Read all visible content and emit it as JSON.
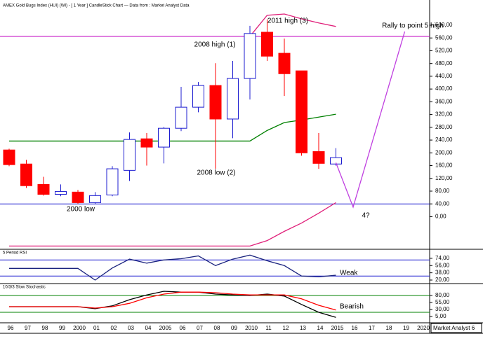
{
  "chart_data": [
    {
      "type": "candlestick",
      "title": "AMEX Gold Bugs Index (HUI) (WI) -  [ 1 Year ] CandleStick Chart — Data from : Market Analyst Data",
      "categories": [
        "96",
        "97",
        "98",
        "99",
        "2000",
        "01",
        "02",
        "03",
        "04",
        "2005",
        "06",
        "07",
        "08",
        "09",
        "2010",
        "11",
        "12",
        "13",
        "14",
        "2015",
        "16",
        "17",
        "18",
        "19",
        "2020"
      ],
      "open": [
        209,
        165,
        101,
        70,
        77,
        44,
        68,
        145,
        244,
        218,
        277,
        343,
        411,
        306,
        433,
        578,
        512,
        457,
        204,
        165,
        null,
        null,
        null,
        null,
        null
      ],
      "high": [
        213,
        178,
        125,
        101,
        84,
        77,
        158,
        264,
        262,
        281,
        407,
        422,
        481,
        488,
        598,
        618,
        558,
        457,
        262,
        215,
        null,
        null,
        null,
        null,
        null
      ],
      "low": [
        158,
        90,
        66,
        64,
        40,
        40,
        64,
        112,
        160,
        167,
        268,
        327,
        150,
        246,
        367,
        488,
        378,
        191,
        150,
        160,
        null,
        null,
        null,
        null,
        null
      ],
      "close": [
        163,
        97,
        70,
        79,
        44,
        66,
        150,
        242,
        218,
        277,
        343,
        411,
        306,
        433,
        574,
        503,
        448,
        200,
        167,
        185,
        null,
        null,
        null,
        null,
        null
      ],
      "up_color": "#1c1cd0",
      "down_color": "#ff0000",
      "overlays": [
        {
          "color": "#008000",
          "values": [
            237,
            237,
            237,
            237,
            237,
            237,
            237,
            237,
            237,
            237,
            237,
            237,
            237,
            237,
            237,
            270,
            295,
            303,
            312,
            321,
            null,
            null,
            null,
            null,
            null
          ]
        },
        {
          "color": "#e0207a",
          "values": [
            null,
            null,
            null,
            null,
            null,
            null,
            null,
            null,
            null,
            null,
            null,
            null,
            null,
            null,
            565,
            631,
            635,
            620,
            607,
            596,
            null,
            null,
            null,
            null,
            null
          ]
        },
        {
          "color": "#e0207a",
          "values": [
            -92,
            -92,
            -92,
            -92,
            -92,
            -92,
            -92,
            -92,
            -92,
            -92,
            -92,
            -92,
            -92,
            -92,
            -92,
            -75,
            -46,
            -20,
            11,
            44,
            null,
            null,
            null,
            null,
            null
          ]
        }
      ],
      "levels": [
        {
          "value": 565,
          "color": "#c000c0"
        },
        {
          "value": 40,
          "color": "#2020d0"
        }
      ],
      "projection": {
        "color": "#c040e0",
        "x": [
          "2015",
          "16",
          "19"
        ],
        "values": [
          169,
          30,
          580
        ]
      },
      "annotations": [
        "2008 high (1)",
        "2008 low (2)",
        "2011 high (3)",
        "2000 low",
        "4?",
        "Rally to point 5 high"
      ],
      "footer": "Market Analyst 6",
      "ylim": [
        -100,
        668
      ],
      "yticks": [
        {
          "value": 0,
          "label": "0,00"
        },
        {
          "value": 40,
          "label": "40,00"
        },
        {
          "value": 80,
          "label": "80,00"
        },
        {
          "value": 120,
          "label": "120,00"
        },
        {
          "value": 160,
          "label": "160,00"
        },
        {
          "value": 200,
          "label": "200,00"
        },
        {
          "value": 240,
          "label": "240,00"
        },
        {
          "value": 280,
          "label": "280,00"
        },
        {
          "value": 320,
          "label": "320,00"
        },
        {
          "value": 360,
          "label": "360,00"
        },
        {
          "value": 400,
          "label": "400,00"
        },
        {
          "value": 440,
          "label": "440,00"
        },
        {
          "value": 480,
          "label": "480,00"
        },
        {
          "value": 520,
          "label": "520,00"
        },
        {
          "value": 560,
          "label": "560,00"
        },
        {
          "value": 600,
          "label": "600,00"
        }
      ]
    },
    {
      "type": "line",
      "title": "5 Period RSI",
      "series": [
        {
          "color": "#1a237e",
          "values": [
            49,
            49,
            49,
            49,
            49,
            20,
            50,
            72,
            62,
            70,
            73,
            80,
            56,
            72,
            82,
            68,
            56,
            30,
            28,
            32,
            null,
            null,
            null,
            null,
            null
          ]
        }
      ],
      "levels": [
        {
          "value": 70,
          "color": "#2020d0"
        },
        {
          "value": 30,
          "color": "#2020d0"
        }
      ],
      "annotations": [
        "Weak"
      ],
      "ylim": [
        13,
        93
      ],
      "yticks": [
        {
          "value": 74,
          "label": "74,00"
        },
        {
          "value": 56,
          "label": "56,00"
        },
        {
          "value": 38,
          "label": "38,00"
        },
        {
          "value": 20,
          "label": "20,00"
        }
      ]
    },
    {
      "type": "line",
      "title": "10/3/3 Slow Stochastic",
      "series": [
        {
          "color": "#000000",
          "values": [
            40,
            40,
            40,
            40,
            40,
            33,
            43,
            65,
            82,
            95,
            92,
            92,
            85,
            82,
            80,
            85,
            78,
            48,
            20,
            2,
            null,
            null,
            null,
            null,
            null
          ]
        },
        {
          "color": "#ff0000",
          "values": [
            40,
            40,
            40,
            40,
            40,
            35,
            40,
            52,
            72,
            85,
            92,
            92,
            90,
            85,
            82,
            82,
            82,
            68,
            45,
            28,
            null,
            null,
            null,
            null,
            null
          ]
        }
      ],
      "levels": [
        {
          "value": 80,
          "color": "#008000"
        },
        {
          "value": 20,
          "color": "#008000"
        }
      ],
      "annotations": [
        "Bearish"
      ],
      "ylim": [
        -15,
        115
      ],
      "yticks": [
        {
          "value": 80,
          "label": "80,00"
        },
        {
          "value": 55,
          "label": "55,00"
        },
        {
          "value": 30,
          "label": "30,00"
        },
        {
          "value": 5,
          "label": "5,00"
        }
      ]
    }
  ]
}
